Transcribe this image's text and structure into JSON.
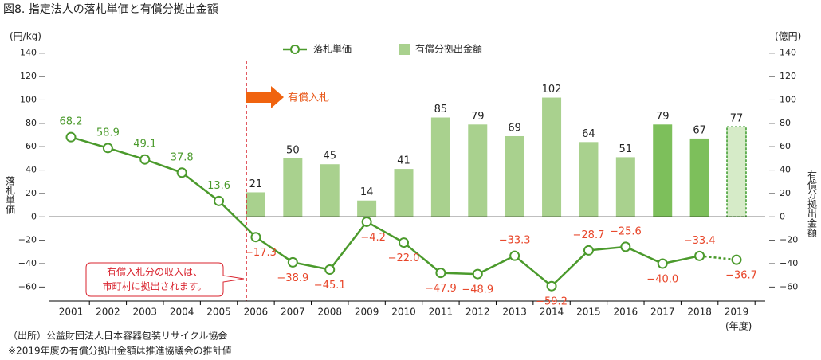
{
  "chart_data": {
    "type": "bar-line",
    "title": "図8. 指定法人の落札単価と有償分拠出金額",
    "y_unit": "(円/kg)",
    "y2_unit": "(億円)",
    "x_unit": "(年度)",
    "ylabel": "落札単価",
    "y2label": "有償分拠出金額",
    "categories": [
      "2001",
      "2002",
      "2003",
      "2004",
      "2005",
      "2006",
      "2007",
      "2008",
      "2009",
      "2010",
      "2011",
      "2012",
      "2013",
      "2014",
      "2015",
      "2016",
      "2017",
      "2018",
      "2019"
    ],
    "series": [
      {
        "name": "落札単価",
        "type": "line",
        "color": "#4b9a2c",
        "label_color_negative": "#e8462a",
        "values": [
          68.2,
          58.9,
          49.1,
          37.8,
          13.6,
          -17.3,
          -38.9,
          -45.1,
          -4.2,
          -22.0,
          -47.9,
          -48.9,
          -33.3,
          -59.2,
          -28.7,
          -25.6,
          -40.0,
          -33.4,
          -36.7
        ],
        "value_labels": [
          "68.2",
          "58.9",
          "49.1",
          "37.8",
          "13.6",
          "−17.3",
          "−38.9",
          "−45.1",
          "−4.2",
          "−22.0",
          "−47.9",
          "−48.9",
          "−33.3",
          "−59.2",
          "−28.7",
          "−25.6",
          "−40.0",
          "−33.4",
          "−36.7"
        ],
        "styles": [
          "solid",
          "solid",
          "solid",
          "solid",
          "solid",
          "solid",
          "solid",
          "solid",
          "solid",
          "solid",
          "solid",
          "solid",
          "solid",
          "solid",
          "solid",
          "solid",
          "solid",
          "solid",
          "dotted"
        ]
      },
      {
        "name": "有償分拠出金額",
        "type": "bar",
        "axis": "y2",
        "color": "#a9d18e",
        "values": [
          null,
          null,
          null,
          null,
          null,
          21,
          50,
          45,
          14,
          41,
          85,
          79,
          69,
          102,
          64,
          51,
          79,
          67,
          77
        ],
        "colors": [
          null,
          null,
          null,
          null,
          null,
          "#a9d18e",
          "#a9d18e",
          "#a9d18e",
          "#a9d18e",
          "#a9d18e",
          "#a9d18e",
          "#a9d18e",
          "#a9d18e",
          "#a9d18e",
          "#a9d18e",
          "#a9d18e",
          "#7dbf5b",
          "#7dbf5b",
          "#d6ebc8"
        ],
        "styles": [
          "solid",
          "solid",
          "solid",
          "solid",
          "solid",
          "solid",
          "solid",
          "solid",
          "solid",
          "solid",
          "solid",
          "solid",
          "solid",
          "solid",
          "solid",
          "solid",
          "solid",
          "solid",
          "dashed"
        ]
      }
    ],
    "ylim": [
      -72,
      148
    ],
    "yticks": [
      {
        "value": -60,
        "label": "−60"
      },
      {
        "value": -40,
        "label": "−40"
      },
      {
        "value": -20,
        "label": "−20"
      },
      0,
      20,
      40,
      60,
      80,
      100,
      120,
      140
    ],
    "y2lim": [
      -72,
      148
    ],
    "y2ticks": [
      {
        "value": -60,
        "label": "−60"
      },
      {
        "value": -40,
        "label": "−40"
      },
      {
        "value": -20,
        "label": "−20"
      },
      0,
      20,
      40,
      60,
      80,
      100,
      120,
      140
    ],
    "annotations": {
      "arrow_text": "有償入札",
      "callout": [
        "有償入札分の収入は、",
        "市町村に拠出されます。"
      ]
    },
    "source": "（出所）公益財団法人日本容器包装リサイクル協会",
    "note": "※2019年度の有償分拠出金額は推進協議会の推計値"
  }
}
